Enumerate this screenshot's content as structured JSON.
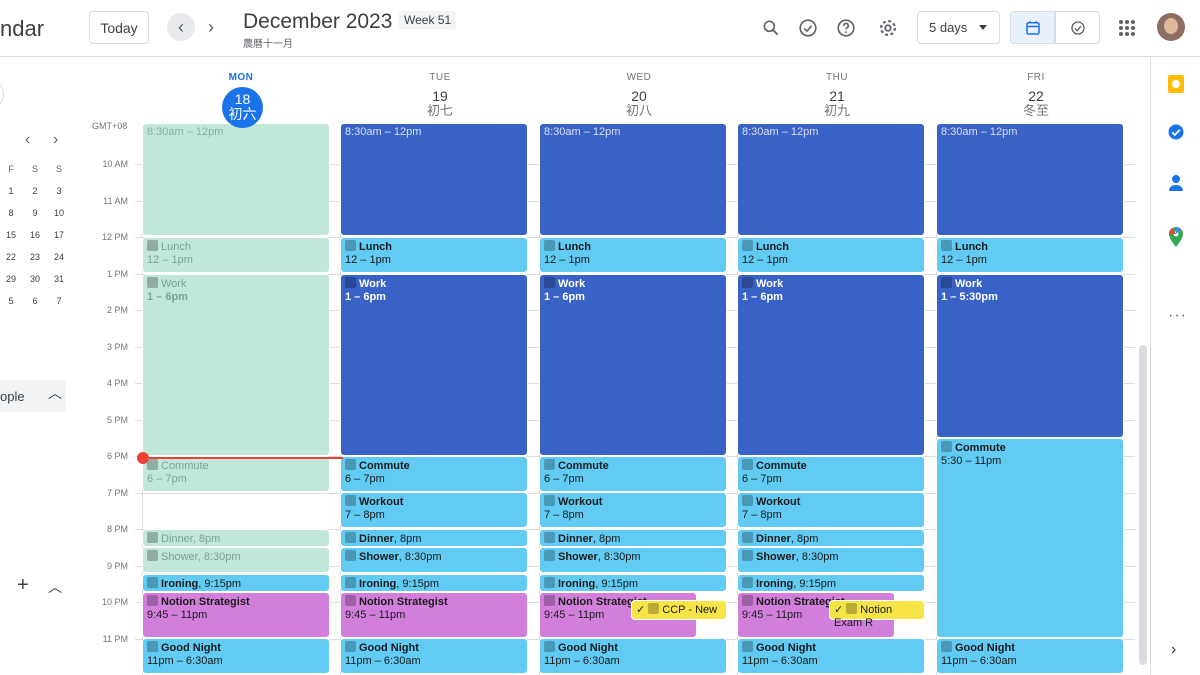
{
  "app": {
    "title_partial": "ndar"
  },
  "toolbar": {
    "today_label": "Today",
    "month_title": "December 2023",
    "week_label": "Week 51",
    "lunar_month": "農曆十一月",
    "view_select": "5 days"
  },
  "sidebar": {
    "mini_nav_prev": "‹",
    "mini_nav_next": "›",
    "mini_day_headers": [
      "F",
      "S",
      "S"
    ],
    "mini_rows": [
      [
        "1",
        "2",
        "3"
      ],
      [
        "8",
        "9",
        "10"
      ],
      [
        "15",
        "16",
        "17"
      ],
      [
        "22",
        "23",
        "24"
      ],
      [
        "29",
        "30",
        "31"
      ],
      [
        "5",
        "6",
        "7"
      ]
    ],
    "people_label": "ople"
  },
  "calendar": {
    "timezone": "GMT+08",
    "hours": [
      "10 AM",
      "11 AM",
      "12 PM",
      "1 PM",
      "2 PM",
      "3 PM",
      "4 PM",
      "5 PM",
      "6 PM",
      "7 PM",
      "8 PM",
      "9 PM",
      "10 PM",
      "11 PM"
    ],
    "days": [
      {
        "dow": "MON",
        "date": "18",
        "lunar": "初六",
        "current": true
      },
      {
        "dow": "TUE",
        "date": "19",
        "lunar": "初七"
      },
      {
        "dow": "WED",
        "date": "20",
        "lunar": "初八"
      },
      {
        "dow": "THU",
        "date": "21",
        "lunar": "初九"
      },
      {
        "dow": "FRI",
        "date": "22",
        "lunar": "冬至"
      }
    ],
    "clipped_event_text": "8:30am – 12pm",
    "events": {
      "lunch": {
        "title": "Lunch",
        "time": "12 – 1pm"
      },
      "work": {
        "title": "Work",
        "time": "1 – 6pm"
      },
      "work_fri": {
        "title": "Work",
        "time": "1 – 5:30pm"
      },
      "commute": {
        "title": "Commute",
        "time": "6 – 7pm"
      },
      "commute_fri": {
        "title": "Commute",
        "time": "5:30 – 11pm"
      },
      "workout": {
        "title": "Workout",
        "time": "7 – 8pm"
      },
      "dinner": {
        "title": "Dinner",
        "time": ", 8pm"
      },
      "shower": {
        "title": "Shower",
        "time": ", 8:30pm"
      },
      "ironing": {
        "title": "Ironing",
        "time": ", 9:15pm"
      },
      "notion": {
        "title": "Notion Strategist",
        "time": "9:45 – 11pm"
      },
      "goodnight": {
        "title": "Good Night",
        "time": "11pm – 6:30am"
      },
      "task_wed": {
        "title": "CCP - New"
      },
      "task_thu": {
        "title": "Notion Exam R"
      }
    }
  },
  "colors": {
    "accent": "#1a73e8",
    "event_dark": "#3962c6",
    "event_light": "#61cbf3",
    "event_pink": "#d27fdc",
    "event_past": "#c2e7d9",
    "task_yellow": "#f7e547",
    "now_line": "#ea4335"
  },
  "icons": [
    "search-icon",
    "tasks-check-icon",
    "help-icon",
    "settings-icon",
    "calendar-view-icon",
    "tasks-view-icon",
    "apps-grid-icon",
    "keep-icon",
    "tasks-icon",
    "contacts-icon",
    "maps-icon",
    "more-icon",
    "expand-icon"
  ]
}
